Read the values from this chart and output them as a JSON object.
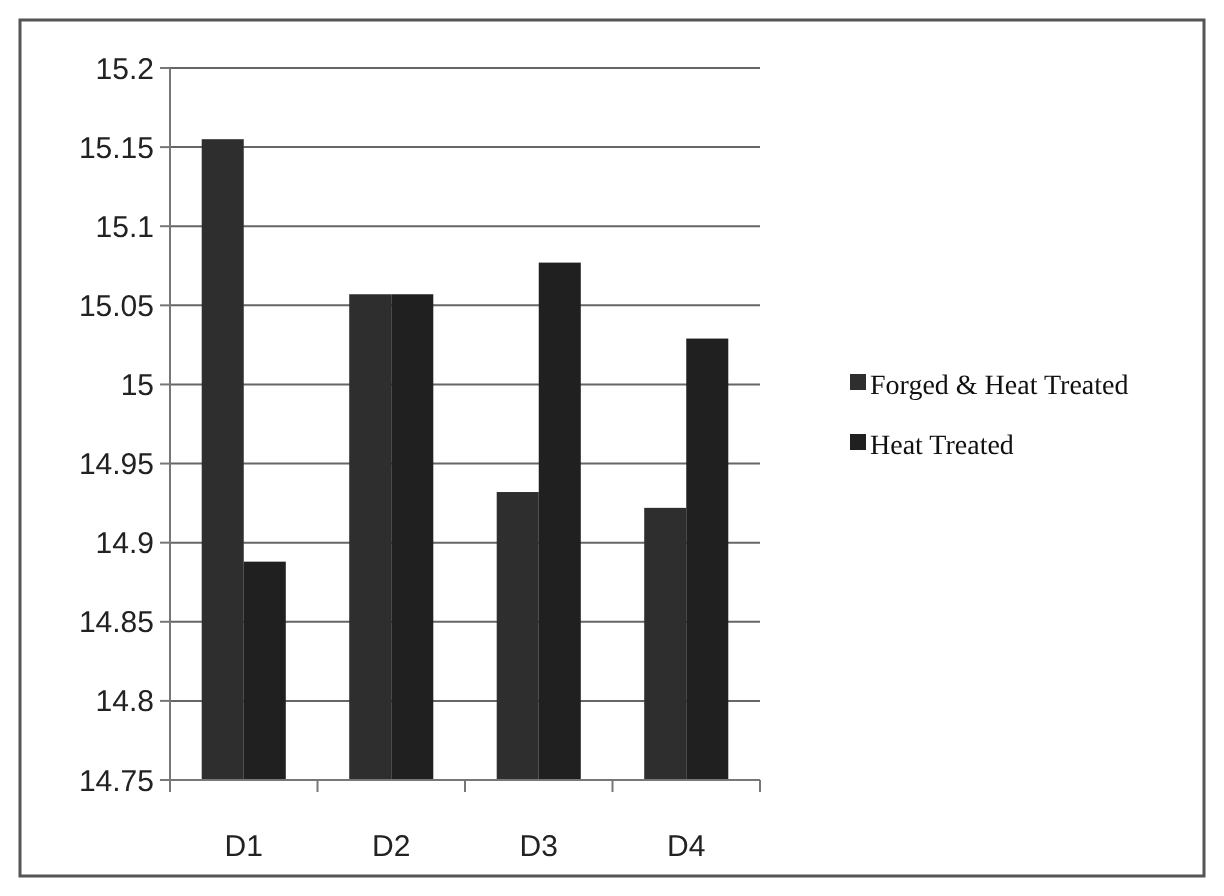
{
  "chart_data": {
    "type": "bar",
    "categories": [
      "D1",
      "D2",
      "D3",
      "D4"
    ],
    "series": [
      {
        "name": "Forged & Heat Treated",
        "color": "#2e2e2e",
        "values": [
          15.155,
          15.057,
          14.932,
          14.922
        ]
      },
      {
        "name": "Heat Treated",
        "color": "#202020",
        "values": [
          14.888,
          15.057,
          15.077,
          15.029
        ]
      }
    ],
    "ylim": [
      14.75,
      15.2
    ],
    "yticks": [
      14.75,
      14.8,
      14.85,
      14.9,
      14.95,
      15,
      15.05,
      15.1,
      15.15,
      15.2
    ],
    "grid": "y",
    "legend": "right"
  }
}
